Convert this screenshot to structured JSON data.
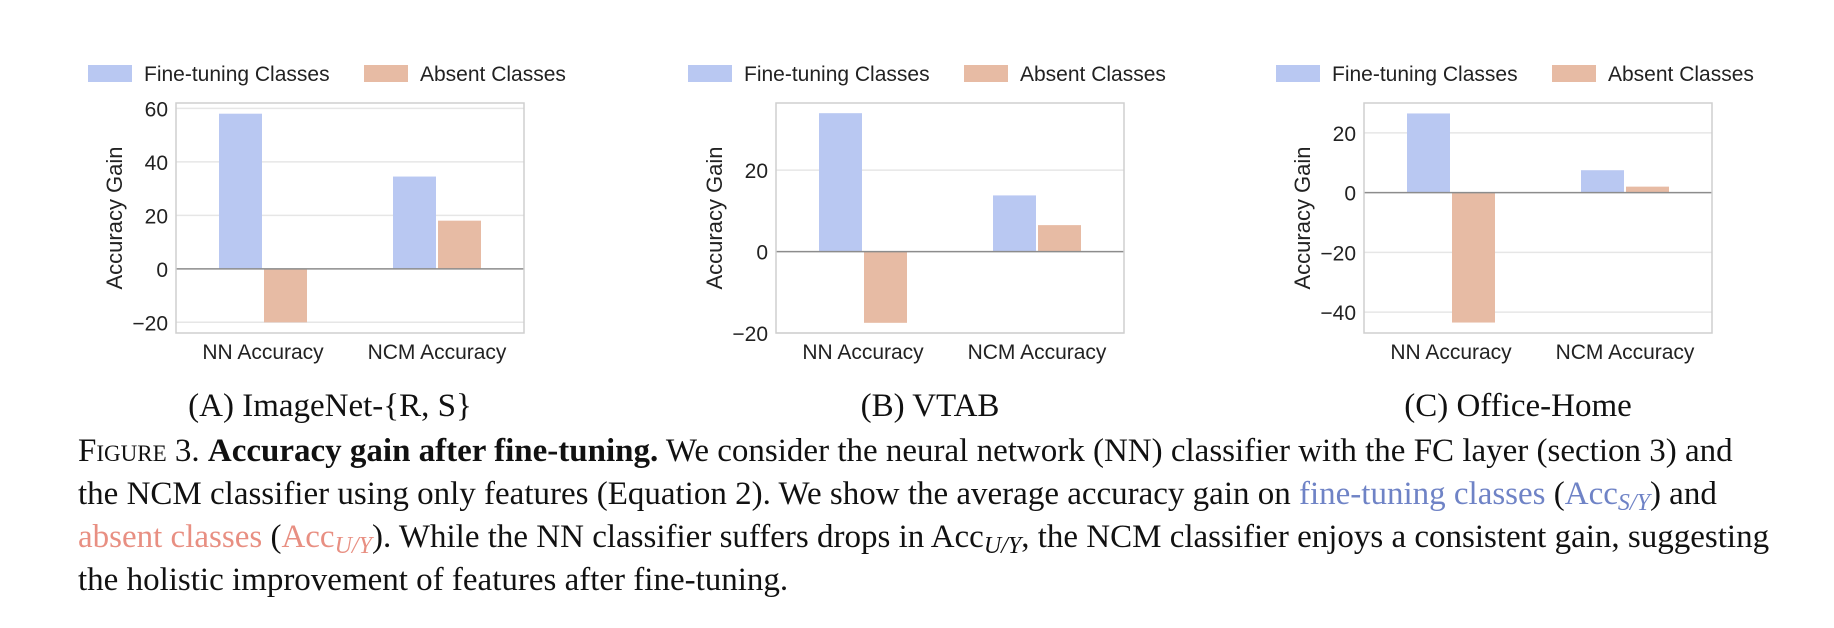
{
  "legend": {
    "fine": "Fine-tuning Classes",
    "absent": "Absent Classes"
  },
  "colors": {
    "fine": "#b9c8f2",
    "absent": "#e7bba4",
    "zero_line": "#8c8c8c",
    "grid": "#e6e6e6",
    "frame": "#cfcfcf"
  },
  "chart_data": [
    {
      "type": "bar",
      "title": "(A) ImageNet-{R, S}",
      "ylabel": "Accuracy Gain",
      "categories": [
        "NN Accuracy",
        "NCM Accuracy"
      ],
      "series": [
        {
          "name": "Fine-tuning Classes",
          "values": [
            58,
            34.5
          ]
        },
        {
          "name": "Absent Classes",
          "values": [
            -20,
            18
          ]
        }
      ],
      "ylim": [
        -24,
        62
      ],
      "yticks": [
        -20,
        0,
        20,
        40,
        60
      ],
      "ytick_labels": [
        "−20",
        "0",
        "20",
        "40",
        "60"
      ],
      "grid": true,
      "legend_position": "top"
    },
    {
      "type": "bar",
      "title": "(B) VTAB",
      "ylabel": "Accuracy Gain",
      "categories": [
        "NN Accuracy",
        "NCM Accuracy"
      ],
      "series": [
        {
          "name": "Fine-tuning Classes",
          "values": [
            34,
            13.8
          ]
        },
        {
          "name": "Absent Classes",
          "values": [
            -17.5,
            6.5
          ]
        }
      ],
      "ylim": [
        -20,
        36.5
      ],
      "yticks": [
        -20,
        0,
        20
      ],
      "ytick_labels": [
        "−20",
        "0",
        "20"
      ],
      "grid": true,
      "legend_position": "top"
    },
    {
      "type": "bar",
      "title": "(C) Office-Home",
      "ylabel": "Accuracy Gain",
      "categories": [
        "NN Accuracy",
        "NCM Accuracy"
      ],
      "series": [
        {
          "name": "Fine-tuning Classes",
          "values": [
            26.5,
            7.5
          ]
        },
        {
          "name": "Absent Classes",
          "values": [
            -43.5,
            2
          ]
        }
      ],
      "ylim": [
        -47,
        30
      ],
      "yticks": [
        -40,
        -20,
        0,
        20
      ],
      "ytick_labels": [
        "−40",
        "−20",
        "0",
        "20"
      ],
      "grid": true,
      "legend_position": "top"
    }
  ],
  "caption": {
    "label": "Figure 3.",
    "title": "Accuracy gain after fine-tuning.",
    "text1": " We consider the neural network (NN) classifier with the FC layer (section 3) and the NCM classifier using only features (Equation 2). We show the average accuracy gain on ",
    "fine_text": "fine-tuning classes",
    "paren_open": " (",
    "acc": "Acc",
    "sub_fine": "S/Y",
    "text2": ") and ",
    "absent_text": "absent classes",
    "sub_absent": "U/Y",
    "text3": "). While the NN classifier suffers drops in ",
    "text4": ", the NCM classifier enjoys a consistent gain, suggesting the holistic improvement of features after fine-tuning."
  }
}
